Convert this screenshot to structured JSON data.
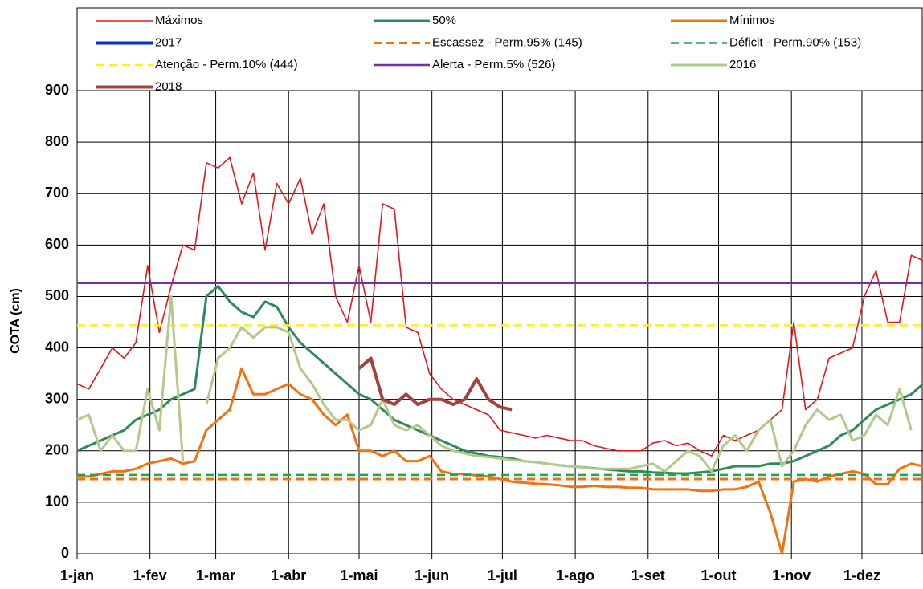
{
  "chart_data": {
    "type": "line",
    "y_label": "COTA (cm)",
    "xlim": [
      0,
      360
    ],
    "ylim": [
      0,
      900
    ],
    "xticks": [
      {
        "value": 0,
        "label": "1-jan"
      },
      {
        "value": 31,
        "label": "1-fev"
      },
      {
        "value": 59,
        "label": "1-mar"
      },
      {
        "value": 90,
        "label": "1-abr"
      },
      {
        "value": 120,
        "label": "1-mai"
      },
      {
        "value": 151,
        "label": "1-jun"
      },
      {
        "value": 181,
        "label": "1-jul"
      },
      {
        "value": 212,
        "label": "1-ago"
      },
      {
        "value": 243,
        "label": "1-set"
      },
      {
        "value": 273,
        "label": "1-out"
      },
      {
        "value": 304,
        "label": "1-nov"
      },
      {
        "value": 334,
        "label": "1-dez"
      }
    ],
    "yticks": [
      0,
      100,
      200,
      300,
      400,
      500,
      600,
      700,
      800,
      900
    ],
    "grid": true,
    "x": [
      0,
      5,
      10,
      15,
      20,
      25,
      30,
      35,
      40,
      45,
      50,
      55,
      60,
      65,
      70,
      75,
      80,
      85,
      90,
      95,
      100,
      105,
      110,
      115,
      120,
      125,
      130,
      135,
      140,
      145,
      150,
      155,
      160,
      165,
      170,
      175,
      180,
      185,
      190,
      195,
      200,
      205,
      210,
      215,
      220,
      225,
      230,
      235,
      240,
      245,
      250,
      255,
      260,
      265,
      270,
      275,
      280,
      285,
      290,
      295,
      300,
      305,
      310,
      315,
      320,
      325,
      330,
      335,
      340,
      345,
      350,
      355,
      360
    ],
    "series": [
      {
        "name": "Máximos",
        "color": "#e8161b",
        "width": 1.6,
        "values": [
          330,
          320,
          360,
          400,
          380,
          410,
          560,
          430,
          520,
          600,
          590,
          760,
          750,
          770,
          680,
          740,
          590,
          720,
          680,
          730,
          620,
          680,
          500,
          450,
          560,
          450,
          680,
          670,
          440,
          430,
          350,
          320,
          300,
          290,
          280,
          270,
          240,
          235,
          230,
          225,
          230,
          225,
          220,
          220,
          210,
          205,
          200,
          200,
          200,
          215,
          220,
          210,
          215,
          200,
          190,
          230,
          220,
          230,
          240,
          260,
          280,
          450,
          280,
          300,
          380,
          390,
          400,
          500,
          550,
          450,
          450,
          580,
          570
        ]
      },
      {
        "name": "50%",
        "color": "#2e8b57",
        "width": 3,
        "values": [
          200,
          210,
          220,
          230,
          240,
          260,
          270,
          280,
          300,
          310,
          320,
          500,
          520,
          490,
          470,
          460,
          490,
          480,
          440,
          410,
          390,
          370,
          350,
          330,
          310,
          300,
          280,
          260,
          250,
          240,
          230,
          220,
          210,
          200,
          195,
          190,
          188,
          185,
          180,
          178,
          175,
          172,
          170,
          168,
          166,
          164,
          162,
          160,
          160,
          158,
          157,
          156,
          156,
          158,
          160,
          165,
          170,
          170,
          170,
          175,
          175,
          180,
          190,
          200,
          210,
          230,
          240,
          260,
          280,
          290,
          300,
          310,
          330
        ]
      },
      {
        "name": "Mínimos",
        "color": "#f5700f",
        "width": 3,
        "values": [
          150,
          150,
          155,
          160,
          160,
          165,
          175,
          180,
          185,
          175,
          180,
          240,
          260,
          280,
          360,
          310,
          310,
          320,
          330,
          310,
          300,
          270,
          250,
          270,
          200,
          200,
          190,
          200,
          180,
          180,
          190,
          160,
          155,
          155,
          152,
          150,
          145,
          140,
          138,
          136,
          135,
          133,
          130,
          130,
          132,
          130,
          130,
          128,
          128,
          125,
          125,
          125,
          125,
          122,
          122,
          125,
          125,
          130,
          140,
          80,
          0,
          140,
          145,
          140,
          150,
          155,
          160,
          155,
          135,
          135,
          165,
          175,
          170
        ]
      },
      {
        "name": "2017",
        "color": "#0033cc",
        "width": 4,
        "values": [
          null,
          null,
          null,
          null,
          null,
          null,
          null,
          null,
          null,
          null,
          null,
          null,
          null,
          null,
          null,
          null,
          null,
          null,
          null,
          null,
          null,
          null,
          null,
          null,
          null,
          null,
          null,
          null,
          null,
          null,
          null,
          null,
          null,
          null,
          null,
          null,
          null,
          null,
          null,
          null,
          null,
          null,
          null,
          null,
          null,
          null,
          null,
          null,
          null,
          null,
          null,
          null,
          null,
          null,
          null,
          null,
          null,
          null,
          null,
          null,
          null,
          null,
          null,
          null,
          null,
          null,
          null,
          null,
          null,
          null,
          null,
          null,
          null
        ]
      },
      {
        "name": "Escassez - Perm.95% (145)",
        "color": "#f5700f",
        "width": 3,
        "dashed": true,
        "value": 145
      },
      {
        "name": "Déficit - Perm.90% (153)",
        "color": "#1aa84a",
        "width": 2.5,
        "dashed": true,
        "value": 153
      },
      {
        "name": "Atenção - Perm.10% (444)",
        "color": "#ffee22",
        "width": 2.5,
        "dashed": true,
        "value": 444
      },
      {
        "name": "Alerta - Perm.5% (526)",
        "color": "#7030a0",
        "width": 2.5,
        "value": 526
      },
      {
        "name": "2016",
        "color": "#b3c98c",
        "width": 3,
        "values": [
          260,
          270,
          200,
          230,
          200,
          200,
          320,
          240,
          500,
          180,
          null,
          290,
          380,
          400,
          440,
          420,
          440,
          440,
          430,
          360,
          330,
          290,
          260,
          260,
          240,
          250,
          300,
          250,
          240,
          250,
          230,
          210,
          200,
          195,
          190,
          188,
          185,
          182,
          180,
          178,
          175,
          172,
          170,
          168,
          165,
          165,
          165,
          165,
          170,
          175,
          160,
          180,
          200,
          190,
          160,
          210,
          230,
          200,
          240,
          260,
          170,
          200,
          250,
          280,
          260,
          270,
          220,
          230,
          270,
          250,
          320,
          240,
          null
        ]
      },
      {
        "name": "2018",
        "color": "#a5413c",
        "width": 4,
        "values": [
          null,
          null,
          null,
          null,
          null,
          null,
          null,
          null,
          null,
          null,
          null,
          null,
          null,
          null,
          null,
          null,
          null,
          null,
          null,
          null,
          null,
          null,
          null,
          null,
          360,
          380,
          300,
          290,
          310,
          290,
          300,
          300,
          290,
          300,
          340,
          300,
          285,
          280,
          null,
          null,
          null,
          null,
          null,
          null,
          null,
          null,
          null,
          null,
          null,
          null,
          null,
          null,
          null,
          null,
          null,
          null,
          null,
          null,
          null,
          null,
          null,
          null,
          null,
          null,
          null,
          null,
          null,
          null,
          null,
          null,
          null,
          null,
          null
        ]
      }
    ]
  }
}
